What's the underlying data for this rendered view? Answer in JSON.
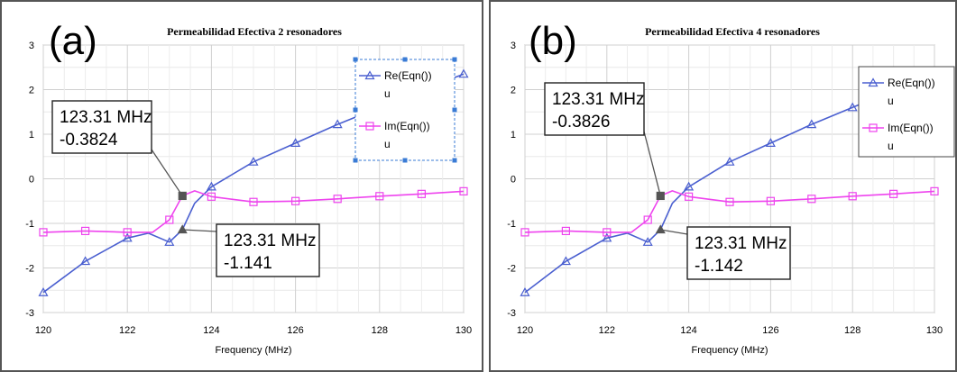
{
  "chart_data": [
    {
      "type": "line",
      "panel_label": "(a)",
      "title": "Permeabilidad Efectiva 2 resonadores",
      "xlabel": "Frequency (MHz)",
      "ylabel": "",
      "xlim": [
        120,
        130
      ],
      "ylim": [
        -3,
        3
      ],
      "xticks": [
        "120",
        "122",
        "124",
        "126",
        "128",
        "130"
      ],
      "yticks": [
        "3",
        "2",
        "1",
        "0",
        "-1",
        "-2",
        "-3"
      ],
      "grid": true,
      "legend_position": "top-right",
      "series": [
        {
          "name": "Re(Eqn())",
          "legend_sub": "u",
          "color": "#4a5fd0",
          "marker": "triangle",
          "x": [
            120,
            121,
            122,
            122.5,
            123,
            123.31,
            123.6,
            124,
            125,
            126,
            127,
            128,
            129,
            130
          ],
          "y": [
            -2.55,
            -1.85,
            -1.33,
            -1.22,
            -1.42,
            -1.141,
            -0.55,
            -0.18,
            0.38,
            0.8,
            1.22,
            1.6,
            1.98,
            2.35
          ],
          "markers_x": [
            120,
            121,
            122,
            123,
            123.31,
            124,
            125,
            126,
            127,
            128,
            129,
            130
          ]
        },
        {
          "name": "Im(Eqn())",
          "legend_sub": "u",
          "color": "#ee44ee",
          "marker": "square",
          "x": [
            120,
            121,
            122,
            122.6,
            123,
            123.31,
            123.6,
            124,
            125,
            126,
            127,
            128,
            129,
            130
          ],
          "y": [
            -1.2,
            -1.17,
            -1.2,
            -1.2,
            -0.92,
            -0.3824,
            -0.27,
            -0.4,
            -0.52,
            -0.5,
            -0.45,
            -0.39,
            -0.34,
            -0.28
          ],
          "markers_x": [
            120,
            121,
            122,
            123,
            123.31,
            124,
            125,
            126,
            127,
            128,
            129,
            130
          ]
        }
      ],
      "annotations": [
        {
          "line1": "123.31 MHz",
          "line2": "-0.3824",
          "x": 123.31,
          "y": -0.3824
        },
        {
          "line1": "123.31 MHz",
          "line2": "-1.141",
          "x": 123.31,
          "y": -1.141
        }
      ]
    },
    {
      "type": "line",
      "panel_label": "(b)",
      "title": "Permeabilidad Efectiva 4 resonadores",
      "xlabel": "Frequency (MHz)",
      "ylabel": "",
      "xlim": [
        120,
        130
      ],
      "ylim": [
        -3,
        3
      ],
      "xticks": [
        "120",
        "122",
        "124",
        "126",
        "128",
        "130"
      ],
      "yticks": [
        "3",
        "2",
        "1",
        "0",
        "-1",
        "-2",
        "-3"
      ],
      "grid": true,
      "legend_position": "top-right",
      "series": [
        {
          "name": "Re(Eqn())",
          "legend_sub": "u",
          "color": "#4a5fd0",
          "marker": "triangle",
          "x": [
            120,
            121,
            122,
            122.5,
            123,
            123.31,
            123.6,
            124,
            125,
            126,
            127,
            128,
            129,
            130
          ],
          "y": [
            -2.55,
            -1.85,
            -1.33,
            -1.22,
            -1.42,
            -1.142,
            -0.55,
            -0.18,
            0.38,
            0.8,
            1.22,
            1.6,
            1.98,
            2.35
          ],
          "markers_x": [
            120,
            121,
            122,
            123,
            123.31,
            124,
            125,
            126,
            127,
            128,
            129,
            130
          ]
        },
        {
          "name": "Im(Eqn())",
          "legend_sub": "u",
          "color": "#ee44ee",
          "marker": "square",
          "x": [
            120,
            121,
            122,
            122.6,
            123,
            123.31,
            123.6,
            124,
            125,
            126,
            127,
            128,
            129,
            130
          ],
          "y": [
            -1.2,
            -1.17,
            -1.2,
            -1.2,
            -0.92,
            -0.3826,
            -0.27,
            -0.4,
            -0.52,
            -0.5,
            -0.45,
            -0.39,
            -0.34,
            -0.28
          ],
          "markers_x": [
            120,
            121,
            122,
            123,
            123.31,
            124,
            125,
            126,
            127,
            128,
            129,
            130
          ]
        }
      ],
      "annotations": [
        {
          "line1": "123.31 MHz",
          "line2": "-0.3826",
          "x": 123.31,
          "y": -0.3826
        },
        {
          "line1": "123.31 MHz",
          "line2": "-1.142",
          "x": 123.31,
          "y": -1.142
        }
      ]
    }
  ]
}
